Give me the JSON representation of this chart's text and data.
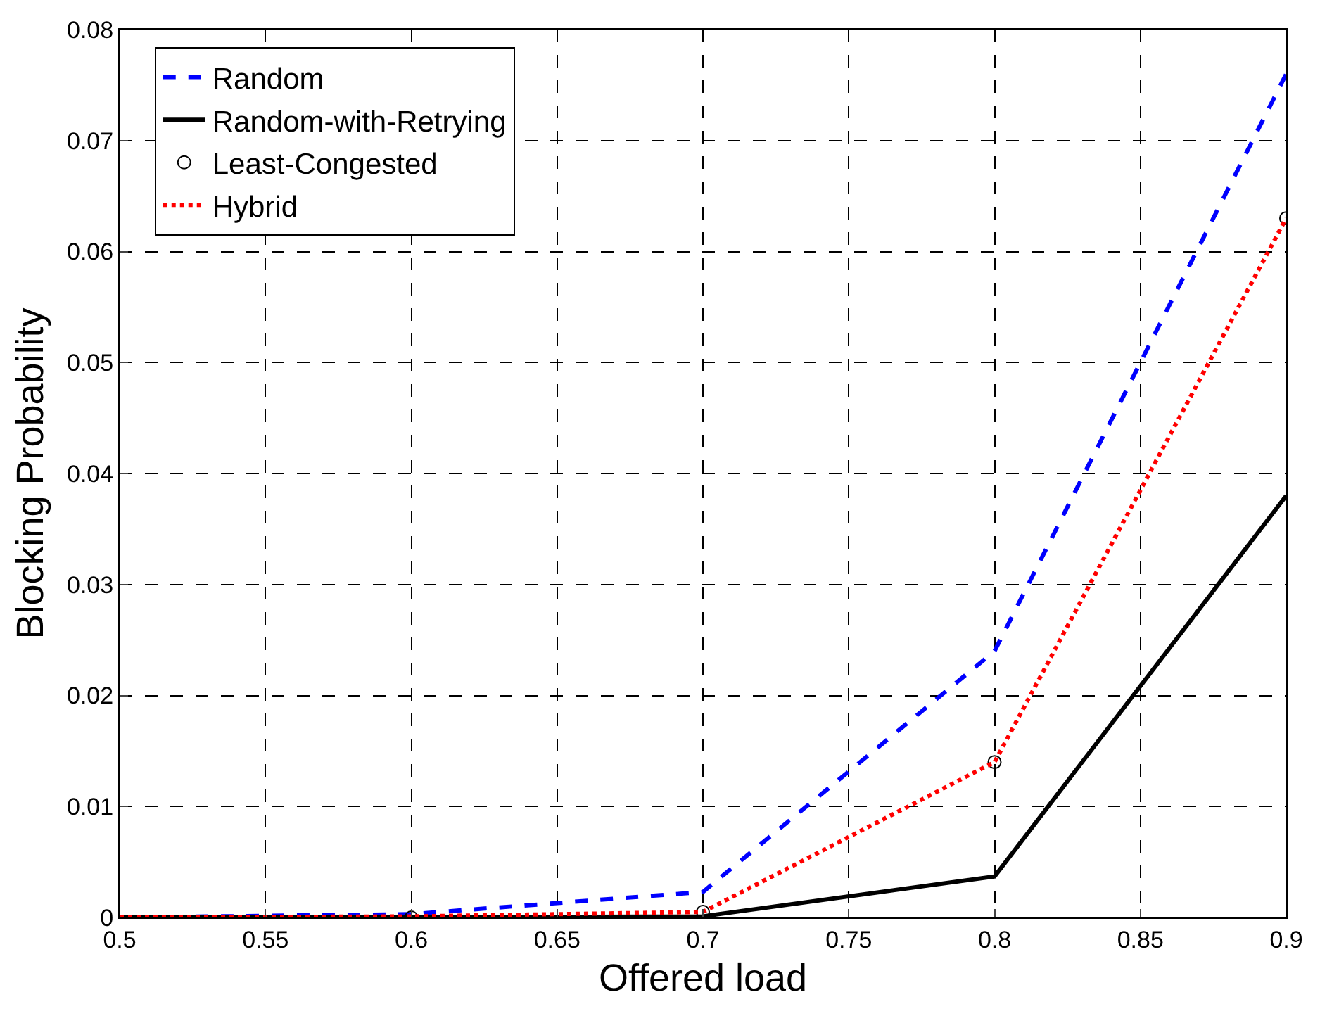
{
  "chart_data": {
    "type": "line",
    "xlabel": "Offered load",
    "ylabel": "Blocking Probability",
    "x": [
      0.5,
      0.6,
      0.7,
      0.8,
      0.9
    ],
    "series": [
      {
        "name": "Random",
        "color": "#0000ff",
        "line_style": "dashed",
        "marker": "none",
        "values": [
          0,
          0.0003,
          0.0023,
          0.024,
          0.076
        ]
      },
      {
        "name": "Random-with-Retrying",
        "color": "#000000",
        "line_style": "solid",
        "marker": "none",
        "values": [
          0,
          0,
          0.0001,
          0.0037,
          0.038
        ]
      },
      {
        "name": "Least-Congested",
        "color": "#000000",
        "type": "scatter",
        "marker": "circle",
        "values": [
          null,
          0,
          0.0005,
          0.014,
          0.063
        ]
      },
      {
        "name": "Hybrid",
        "color": "#ff0000",
        "line_style": "dotted",
        "marker": "none",
        "values": [
          0,
          0.0001,
          0.0005,
          0.014,
          0.063
        ]
      }
    ],
    "xlim": [
      0.5,
      0.9
    ],
    "xticks": [
      0.5,
      0.55,
      0.6,
      0.65,
      0.7,
      0.75,
      0.8,
      0.85,
      0.9
    ],
    "ylim": [
      0,
      0.08
    ],
    "yticks": [
      0,
      0.01,
      0.02,
      0.03,
      0.04,
      0.05,
      0.06,
      0.07,
      0.08
    ],
    "grid": true,
    "legend": "top left"
  }
}
